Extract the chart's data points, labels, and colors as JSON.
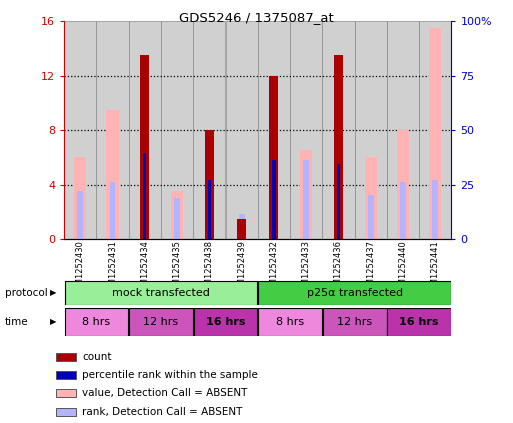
{
  "title": "GDS5246 / 1375087_at",
  "samples": [
    "GSM1252430",
    "GSM1252431",
    "GSM1252434",
    "GSM1252435",
    "GSM1252438",
    "GSM1252439",
    "GSM1252432",
    "GSM1252433",
    "GSM1252436",
    "GSM1252437",
    "GSM1252440",
    "GSM1252441"
  ],
  "count_values": [
    0,
    0,
    13.5,
    0,
    8.0,
    1.5,
    12.0,
    0,
    13.5,
    0,
    0,
    0
  ],
  "rank_values": [
    0,
    0,
    6.3,
    0,
    4.3,
    0,
    5.8,
    0,
    5.5,
    0,
    0,
    0
  ],
  "absent_value_values": [
    6.0,
    9.5,
    0,
    3.5,
    0,
    0,
    0,
    6.5,
    0,
    6.0,
    8.0,
    15.5
  ],
  "absent_rank_values": [
    3.5,
    4.2,
    0,
    3.0,
    4.3,
    1.8,
    0,
    5.8,
    0,
    3.2,
    4.2,
    4.3
  ],
  "ylim": [
    0,
    16
  ],
  "yticks_left": [
    0,
    4,
    8,
    12,
    16
  ],
  "yticks_right": [
    0,
    25,
    50,
    75,
    100
  ],
  "count_color": "#aa0000",
  "rank_color": "#0000bb",
  "absent_value_color": "#ffb3b3",
  "absent_rank_color": "#b3b3ff",
  "bg_color": "#ffffff",
  "left_axis_color": "#cc0000",
  "right_axis_color": "#0000cc",
  "protocol_label_mock": "mock transfected",
  "protocol_label_p25": "p25α transfected",
  "protocol_color_mock": "#99ee99",
  "protocol_color_p25": "#44cc44",
  "time_labels": [
    "8 hrs",
    "12 hrs",
    "16 hrs",
    "8 hrs",
    "12 hrs",
    "16 hrs"
  ],
  "time_colors": [
    "#ee88dd",
    "#cc55bb",
    "#bb33aa",
    "#ee88dd",
    "#cc55bb",
    "#bb33aa"
  ],
  "time_bold": [
    false,
    false,
    true,
    false,
    false,
    true
  ],
  "legend_items": [
    {
      "color": "#aa0000",
      "label": "count"
    },
    {
      "color": "#0000bb",
      "label": "percentile rank within the sample"
    },
    {
      "color": "#ffb3b3",
      "label": "value, Detection Call = ABSENT"
    },
    {
      "color": "#b3b3ff",
      "label": "rank, Detection Call = ABSENT"
    }
  ]
}
